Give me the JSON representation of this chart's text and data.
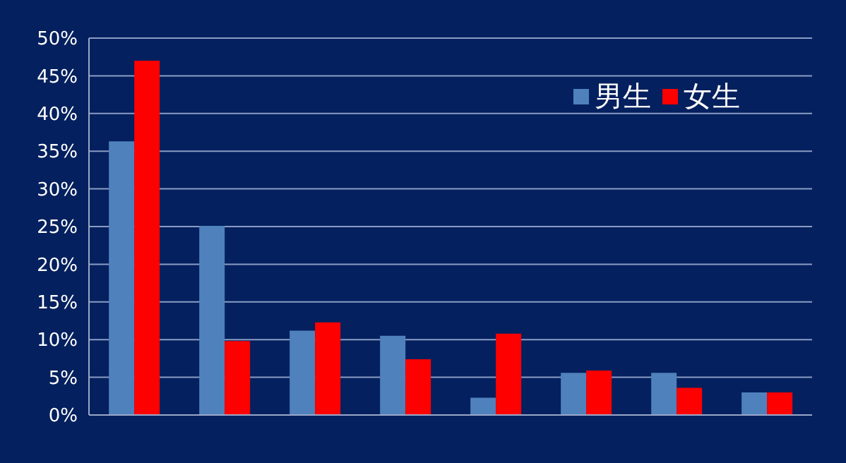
{
  "chart_data": {
    "type": "bar",
    "categories": [
      null,
      null,
      null,
      null,
      null,
      null,
      null,
      null
    ],
    "series": [
      {
        "name": "男生",
        "color": "#4f81bd",
        "values": [
          36.3,
          25.1,
          11.2,
          10.5,
          2.3,
          5.6,
          5.6,
          3.0
        ]
      },
      {
        "name": "女生",
        "color": "#ff0000",
        "values": [
          47,
          9.8,
          12.3,
          7.4,
          10.8,
          5.9,
          3.6,
          3.0
        ]
      }
    ],
    "ylim": [
      0,
      50
    ],
    "yticks": [
      {
        "value": 0,
        "label": "0%"
      },
      {
        "value": 5,
        "label": "5%"
      },
      {
        "value": 10,
        "label": "10%"
      },
      {
        "value": 15,
        "label": "15%"
      },
      {
        "value": 20,
        "label": "20%"
      },
      {
        "value": 25,
        "label": "25%"
      },
      {
        "value": 30,
        "label": "30%"
      },
      {
        "value": 35,
        "label": "35%"
      },
      {
        "value": 40,
        "label": "40%"
      },
      {
        "value": 45,
        "label": "45%"
      },
      {
        "value": 50,
        "label": "50%"
      }
    ],
    "grid": "y",
    "legend": "top right",
    "tick_labels": "y"
  }
}
